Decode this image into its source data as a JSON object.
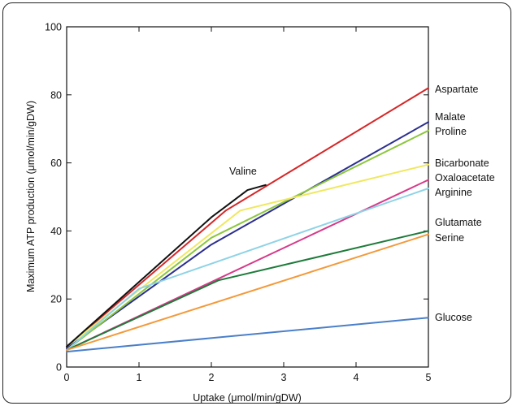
{
  "chart_data": {
    "type": "line",
    "title": "",
    "xlabel": "Uptake (μmol/min/gDW)",
    "ylabel": "Maximum ATP production (μmol/min/gDW)",
    "xlim": [
      0,
      5
    ],
    "ylim": [
      0,
      100
    ],
    "xticks": [
      0,
      1,
      2,
      3,
      4,
      5
    ],
    "yticks": [
      0,
      20,
      40,
      60,
      80,
      100
    ],
    "grid": false,
    "series": [
      {
        "name": "Aspartate",
        "color": "#d62728",
        "x": [
          0,
          2.2,
          5
        ],
        "y": [
          6,
          46,
          82
        ]
      },
      {
        "name": "Malate",
        "color": "#2b2f8f",
        "x": [
          0,
          2,
          5
        ],
        "y": [
          5.5,
          36,
          72
        ]
      },
      {
        "name": "Proline",
        "color": "#8dc63f",
        "x": [
          0,
          2,
          5
        ],
        "y": [
          5,
          38,
          69.5
        ]
      },
      {
        "name": "Bicarbonate",
        "color": "#f0e860",
        "x": [
          0,
          2.4,
          5
        ],
        "y": [
          6,
          46,
          59.5
        ]
      },
      {
        "name": "Oxaloacetate",
        "color": "#d63a8a",
        "x": [
          0,
          5
        ],
        "y": [
          5,
          55
        ]
      },
      {
        "name": "Arginine",
        "color": "#8fd3e6",
        "x": [
          0,
          1,
          5
        ],
        "y": [
          5,
          23,
          52.5
        ]
      },
      {
        "name": "Glutamate",
        "color": "#1e7b3a",
        "x": [
          0,
          2.1,
          5
        ],
        "y": [
          5,
          25.5,
          40
        ]
      },
      {
        "name": "Serine",
        "color": "#f39a3b",
        "x": [
          0,
          5
        ],
        "y": [
          5,
          39
        ]
      },
      {
        "name": "Glucose",
        "color": "#4a7fc9",
        "x": [
          0,
          5
        ],
        "y": [
          4.5,
          14.5
        ]
      },
      {
        "name": "Valine",
        "color": "#111111",
        "x": [
          0,
          1,
          2,
          2.5,
          2.75
        ],
        "y": [
          6,
          25,
          44,
          52,
          53.5
        ]
      }
    ]
  }
}
